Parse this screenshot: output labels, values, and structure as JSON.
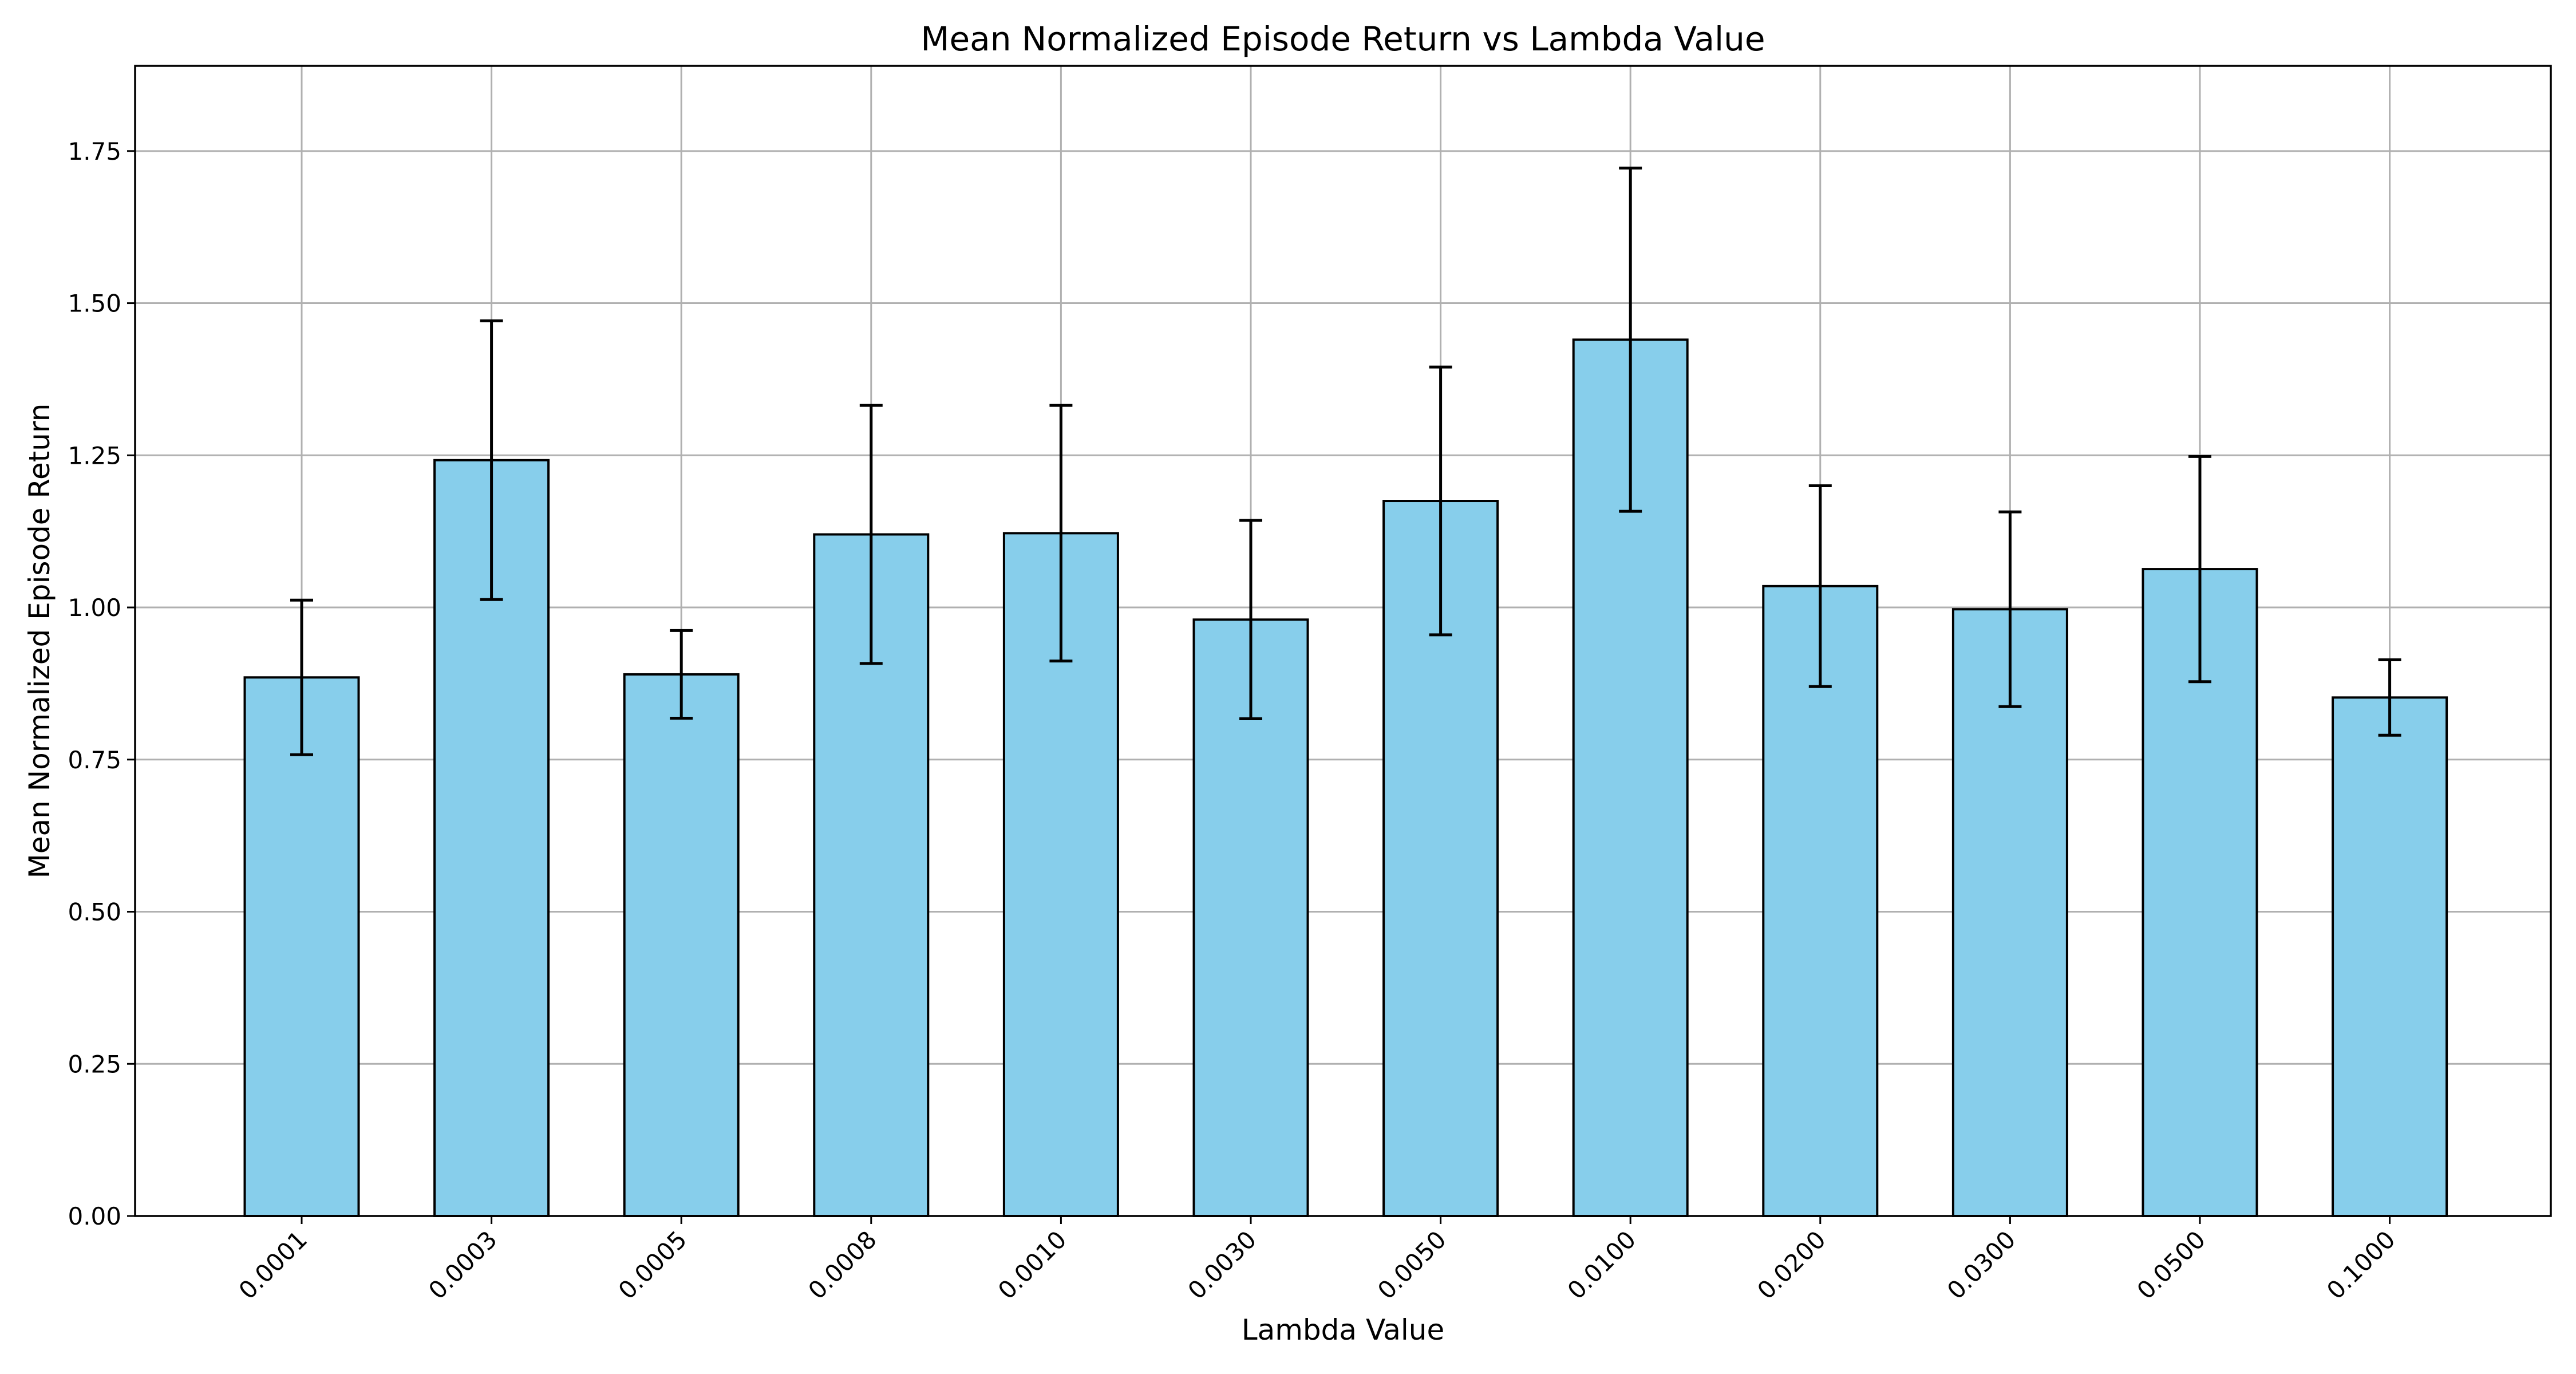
{
  "chart_data": {
    "type": "bar",
    "title": "Mean Normalized Episode Return vs Lambda Value",
    "xlabel": "Lambda Value",
    "ylabel": "Mean Normalized Episode Return",
    "categories": [
      "0.0001",
      "0.0003",
      "0.0005",
      "0.0008",
      "0.0010",
      "0.0030",
      "0.0050",
      "0.0100",
      "0.0200",
      "0.0300",
      "0.0500",
      "0.1000"
    ],
    "values": [
      0.885,
      1.242,
      0.89,
      1.12,
      1.122,
      0.98,
      1.175,
      1.44,
      1.035,
      0.997,
      1.063,
      0.852
    ],
    "errors": [
      0.127,
      0.229,
      0.072,
      0.212,
      0.21,
      0.163,
      0.22,
      0.282,
      0.165,
      0.16,
      0.185,
      0.062
    ],
    "ylim": [
      0,
      1.89
    ],
    "yticks": [
      "0.00",
      "0.25",
      "0.50",
      "0.75",
      "1.00",
      "1.25",
      "1.50",
      "1.75"
    ],
    "grid": true,
    "bar_color": "#87ceeb",
    "edge_color": "#000000"
  }
}
